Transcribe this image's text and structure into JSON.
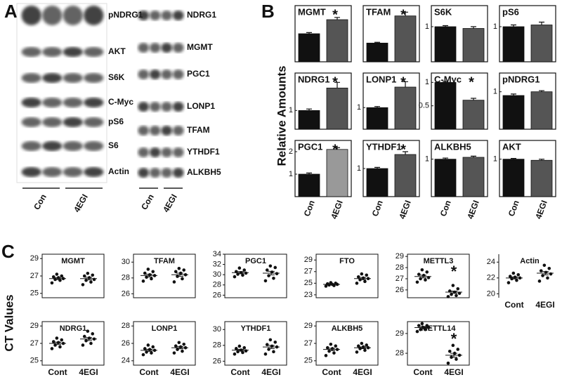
{
  "panels": {
    "a": "A",
    "b": "B",
    "c": "C"
  },
  "blots": {
    "left": [
      "pNDRG1",
      "AKT",
      "S6K",
      "C-Myc",
      "pS6",
      "S6",
      "Actin"
    ],
    "right": [
      "NDRG1",
      "MGMT",
      "PGC1",
      "LONP1",
      "TFAM",
      "YTHDF1",
      "ALKBH5"
    ],
    "groups": [
      "Con",
      "4EGI"
    ]
  },
  "panel_b_ylabel": "Relative Amounts",
  "panel_c_ylabel": "CT Values",
  "chart_data": [
    {
      "type": "bar",
      "title": "MGMT",
      "values": [
        1,
        1.5
      ],
      "errors": [
        0.04,
        0.08
      ],
      "colors": [
        "#111111",
        "#555555"
      ],
      "ylim": [
        0,
        2
      ],
      "annotation": "*"
    },
    {
      "type": "bar",
      "title": "TFAM",
      "values": [
        1,
        2.45
      ],
      "errors": [
        0.04,
        0.2
      ],
      "colors": [
        "#111111",
        "#555555"
      ],
      "ylim": [
        0,
        3
      ],
      "annotation": "*"
    },
    {
      "type": "bar",
      "title": "S6K",
      "values": [
        1,
        0.95
      ],
      "errors": [
        0.03,
        0.05
      ],
      "colors": [
        "#111111",
        "#555555"
      ],
      "ylim": [
        0,
        1.6
      ],
      "yticks": [
        1
      ]
    },
    {
      "type": "bar",
      "title": "pS6",
      "values": [
        1,
        1.05
      ],
      "errors": [
        0.05,
        0.08
      ],
      "colors": [
        "#111111",
        "#555555"
      ],
      "ylim": [
        0,
        1.6
      ],
      "yticks": [
        1
      ]
    },
    {
      "type": "bar",
      "title": "NDRG1",
      "values": [
        1,
        2.2
      ],
      "errors": [
        0.08,
        0.3
      ],
      "colors": [
        "#111111",
        "#555555"
      ],
      "ylim": [
        0,
        3
      ],
      "yticks": [
        1
      ],
      "annotation": "*"
    },
    {
      "type": "bar",
      "title": "LONP1",
      "values": [
        1,
        1.95
      ],
      "errors": [
        0.05,
        0.25
      ],
      "colors": [
        "#111111",
        "#555555"
      ],
      "ylim": [
        0,
        2.6
      ],
      "yticks": [
        1
      ],
      "annotation": "*"
    },
    {
      "type": "bar",
      "title": "C-Myc",
      "values": [
        1,
        0.62
      ],
      "errors": [
        0.02,
        0.04
      ],
      "colors": [
        "#111111",
        "#555555"
      ],
      "ylim": [
        0,
        1.2
      ],
      "yticks": [
        0.5,
        1
      ],
      "annotation": "*"
    },
    {
      "type": "bar",
      "title": "pNDRG1",
      "values": [
        0.9,
        1.0
      ],
      "errors": [
        0.04,
        0.03
      ],
      "colors": [
        "#111111",
        "#555555"
      ],
      "ylim": [
        0,
        1.5
      ],
      "yticks": [
        1
      ]
    },
    {
      "type": "bar",
      "title": "PGC1",
      "categories": [
        "Con",
        "4EGI"
      ],
      "values": [
        1,
        2.1
      ],
      "errors": [
        0.05,
        0.08
      ],
      "colors": [
        "#111111",
        "#999999"
      ],
      "ylim": [
        0,
        2.5
      ],
      "yticks": [
        1,
        2
      ],
      "annotation": "*"
    },
    {
      "type": "bar",
      "title": "YTHDF1",
      "categories": [
        "Con",
        "4EGI"
      ],
      "values": [
        1,
        1.5
      ],
      "errors": [
        0.04,
        0.1
      ],
      "colors": [
        "#111111",
        "#555555"
      ],
      "ylim": [
        0,
        2
      ],
      "yticks": [
        1
      ],
      "annotation": "*"
    },
    {
      "type": "bar",
      "title": "ALKBH5",
      "categories": [
        "Con",
        "4EGI"
      ],
      "values": [
        1,
        1.05
      ],
      "errors": [
        0.03,
        0.03
      ],
      "colors": [
        "#111111",
        "#555555"
      ],
      "ylim": [
        0,
        1.5
      ],
      "yticks": [
        1
      ]
    },
    {
      "type": "bar",
      "title": "AKT",
      "categories": [
        "Con",
        "4EGI"
      ],
      "values": [
        1,
        0.97
      ],
      "errors": [
        0.02,
        0.03
      ],
      "colors": [
        "#111111",
        "#555555"
      ],
      "ylim": [
        0,
        1.5
      ],
      "yticks": [
        1
      ]
    },
    {
      "type": "scatter",
      "title": "MGMT",
      "ylim": [
        24.5,
        29.5
      ],
      "yticks": [
        25,
        27,
        29
      ],
      "groups": [
        {
          "values": [
            26.2,
            26.5,
            26.6,
            26.7,
            26.8,
            26.9,
            27.0,
            27.2
          ],
          "mean": 26.7,
          "sem": 0.12
        },
        {
          "values": [
            26.0,
            26.3,
            26.5,
            26.6,
            26.8,
            27.0,
            27.1,
            27.3
          ],
          "mean": 26.7,
          "sem": 0.15
        }
      ]
    },
    {
      "type": "scatter",
      "title": "TFAM",
      "ylim": [
        25.5,
        31
      ],
      "yticks": [
        26,
        28,
        30
      ],
      "groups": [
        {
          "values": [
            27.6,
            27.9,
            28.1,
            28.3,
            28.4,
            28.6,
            28.8,
            29.1
          ],
          "mean": 28.3,
          "sem": 0.17
        },
        {
          "values": [
            27.5,
            27.9,
            28.2,
            28.4,
            28.6,
            28.8,
            29.0,
            29.2
          ],
          "mean": 28.4,
          "sem": 0.2
        }
      ]
    },
    {
      "type": "scatter",
      "title": "PGC1",
      "ylim": [
        25.5,
        34
      ],
      "yticks": [
        26,
        28,
        30,
        32,
        34
      ],
      "groups": [
        {
          "values": [
            29.6,
            29.9,
            30.1,
            30.3,
            30.4,
            30.6,
            30.9,
            31.3
          ],
          "mean": 30.4,
          "sem": 0.2
        },
        {
          "values": [
            28.8,
            29.3,
            29.8,
            30.2,
            30.5,
            30.9,
            31.4,
            31.7
          ],
          "mean": 30.3,
          "sem": 0.35
        }
      ]
    },
    {
      "type": "scatter",
      "title": "FTO",
      "ylim": [
        22.5,
        30
      ],
      "yticks": [
        23,
        25,
        27,
        29
      ],
      "groups": [
        {
          "values": [
            24.5,
            24.6,
            24.7,
            24.8,
            24.8,
            24.9,
            25.0,
            25.1
          ],
          "mean": 24.8,
          "sem": 0.07
        },
        {
          "values": [
            25.0,
            25.3,
            25.6,
            25.8,
            25.9,
            26.1,
            26.4,
            26.6
          ],
          "mean": 25.8,
          "sem": 0.2
        }
      ]
    },
    {
      "type": "scatter",
      "title": "METTL3",
      "ylim": [
        25.3,
        29.2
      ],
      "yticks": [
        26,
        27,
        28,
        29
      ],
      "annotation": "*",
      "groups": [
        {
          "values": [
            26.7,
            26.9,
            27.0,
            27.1,
            27.3,
            27.4,
            27.6,
            27.8
          ],
          "mean": 27.2,
          "sem": 0.12
        },
        {
          "values": [
            25.4,
            25.5,
            25.6,
            25.7,
            25.8,
            25.9,
            26.1,
            26.4
          ],
          "mean": 25.8,
          "sem": 0.1
        }
      ]
    },
    {
      "type": "scatter",
      "title": "Actin",
      "categories": [
        "Cont",
        "4EGI"
      ],
      "ylim": [
        19.5,
        25
      ],
      "yticks": [
        20,
        22,
        24
      ],
      "groups": [
        {
          "values": [
            21.4,
            21.7,
            21.9,
            22.0,
            22.1,
            22.2,
            22.4,
            22.6
          ],
          "mean": 22.0,
          "sem": 0.13
        },
        {
          "values": [
            21.6,
            22.0,
            22.3,
            22.5,
            22.7,
            22.9,
            23.2,
            23.6
          ],
          "mean": 22.6,
          "sem": 0.22
        }
      ]
    },
    {
      "type": "scatter",
      "title": "NDRG1",
      "categories": [
        "Cont",
        "4EGI"
      ],
      "ylim": [
        24.5,
        29.5
      ],
      "yticks": [
        25,
        27,
        29
      ],
      "groups": [
        {
          "values": [
            26.4,
            26.6,
            26.8,
            27.0,
            27.1,
            27.2,
            27.4,
            27.6
          ],
          "mean": 27.0,
          "sem": 0.14
        },
        {
          "values": [
            26.8,
            27.0,
            27.3,
            27.5,
            27.6,
            27.8,
            28.1,
            28.4
          ],
          "mean": 27.5,
          "sem": 0.18
        }
      ]
    },
    {
      "type": "scatter",
      "title": "LONP1",
      "categories": [
        "Cont",
        "4EGI"
      ],
      "ylim": [
        23.5,
        28.5
      ],
      "yticks": [
        24,
        26,
        28
      ],
      "groups": [
        {
          "values": [
            24.7,
            24.9,
            25.0,
            25.2,
            25.3,
            25.4,
            25.6,
            25.8
          ],
          "mean": 25.2,
          "sem": 0.12
        },
        {
          "values": [
            24.9,
            25.1,
            25.3,
            25.5,
            25.6,
            25.7,
            25.9,
            26.1
          ],
          "mean": 25.5,
          "sem": 0.13
        }
      ]
    },
    {
      "type": "scatter",
      "title": "YTHDF1",
      "categories": [
        "Cont",
        "4EGI"
      ],
      "ylim": [
        25.5,
        31
      ],
      "yticks": [
        26,
        28,
        30
      ],
      "groups": [
        {
          "values": [
            26.9,
            27.1,
            27.2,
            27.3,
            27.4,
            27.6,
            27.7,
            27.9
          ],
          "mean": 27.4,
          "sem": 0.11
        },
        {
          "values": [
            26.9,
            27.2,
            27.5,
            27.8,
            27.9,
            28.1,
            28.4,
            28.7
          ],
          "mean": 27.8,
          "sem": 0.2
        }
      ]
    },
    {
      "type": "scatter",
      "title": "ALKBH5",
      "categories": [
        "Cont",
        "4EGI"
      ],
      "ylim": [
        24.5,
        29.5
      ],
      "yticks": [
        25,
        27,
        29
      ],
      "groups": [
        {
          "values": [
            25.6,
            25.9,
            26.1,
            26.3,
            26.4,
            26.5,
            26.7,
            26.9
          ],
          "mean": 26.3,
          "sem": 0.14
        },
        {
          "values": [
            26.0,
            26.2,
            26.4,
            26.5,
            26.6,
            26.7,
            26.8,
            27.0
          ],
          "mean": 26.5,
          "sem": 0.1
        }
      ]
    },
    {
      "type": "scatter",
      "title": "METTL14",
      "categories": [
        "Cont",
        "4EGI"
      ],
      "ylim": [
        27.4,
        29.6
      ],
      "yticks": [
        28,
        29
      ],
      "annotation": "*",
      "groups": [
        {
          "values": [
            29.1,
            29.2,
            29.2,
            29.3,
            29.3,
            29.4,
            29.4,
            29.5
          ],
          "mean": 29.3,
          "sem": 0.05
        },
        {
          "values": [
            27.5,
            27.7,
            27.8,
            27.9,
            28.0,
            28.1,
            28.2,
            28.4
          ],
          "mean": 27.9,
          "sem": 0.1
        }
      ]
    }
  ]
}
